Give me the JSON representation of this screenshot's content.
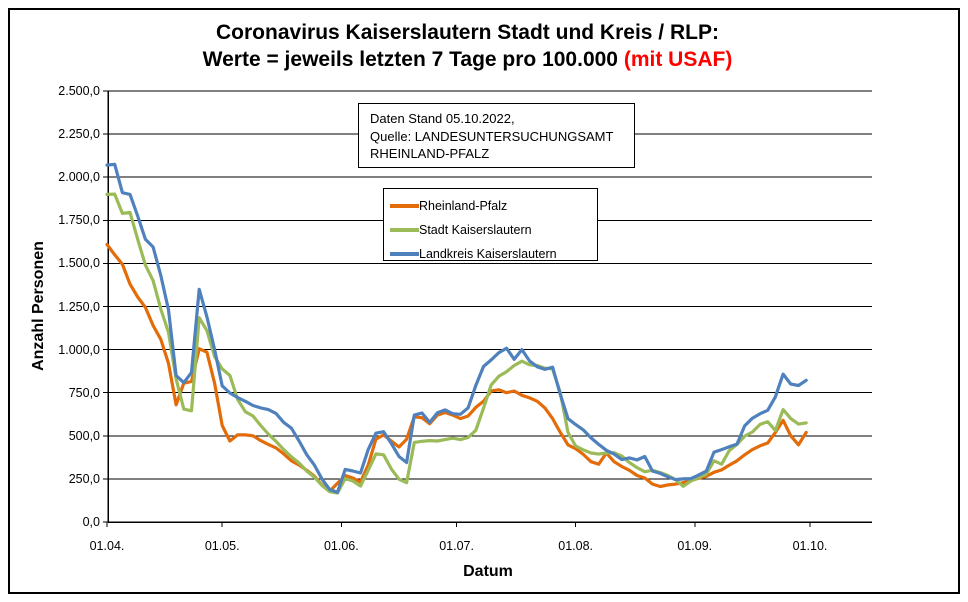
{
  "info_box": {
    "lines": [
      "Daten Stand 05.10.2022,",
      "Quelle: LANDESUNTERSUCHUNGSAMT",
      "RHEINLAND-PFALZ"
    ]
  },
  "chart_data": {
    "type": "line",
    "title": {
      "line1": "Coronavirus Kaiserslautern Stadt und Kreis / RLP:",
      "line2": "Werte = jeweils letzten 7 Tage pro 100.000 ",
      "line2_highlight": "(mit USAF)",
      "highlight_color": "#FF0000"
    },
    "xlabel": "Datum",
    "ylabel": "Anzahl Personen",
    "ylim": [
      0,
      2500
    ],
    "grid": "horizontal-black",
    "legend_position": "inside-upper-center",
    "y_ticks": [
      {
        "value": 2500,
        "label": "2.500,0"
      },
      {
        "value": 2250,
        "label": "2.250,0"
      },
      {
        "value": 2000,
        "label": "2.000,0"
      },
      {
        "value": 1750,
        "label": "1.750,0"
      },
      {
        "value": 1500,
        "label": "1.500,0"
      },
      {
        "value": 1250,
        "label": "1.250,0"
      },
      {
        "value": 1000,
        "label": "1.000,0"
      },
      {
        "value": 750,
        "label": "750,0"
      },
      {
        "value": 500,
        "label": "500,0"
      },
      {
        "value": 250,
        "label": "250,0"
      },
      {
        "value": 0,
        "label": "0,0"
      }
    ],
    "x_ticks": [
      {
        "day": 0,
        "label": "01.04."
      },
      {
        "day": 30,
        "label": "01.05."
      },
      {
        "day": 61,
        "label": "01.06."
      },
      {
        "day": 91,
        "label": "01.07."
      },
      {
        "day": 122,
        "label": "01.08."
      },
      {
        "day": 153,
        "label": "01.09."
      },
      {
        "day": 183,
        "label": "01.10."
      }
    ],
    "x_axis_day_range": [
      0,
      199
    ],
    "x_unit": "Tage ab 01.04.2022",
    "days": [
      0,
      2,
      4,
      6,
      8,
      10,
      12,
      14,
      16,
      18,
      20,
      22,
      24,
      26,
      28,
      30,
      32,
      34,
      36,
      38,
      40,
      42,
      44,
      46,
      48,
      50,
      52,
      54,
      56,
      58,
      60,
      62,
      64,
      66,
      68,
      70,
      72,
      74,
      76,
      78,
      80,
      82,
      84,
      86,
      88,
      90,
      92,
      94,
      96,
      98,
      100,
      102,
      104,
      106,
      108,
      110,
      112,
      114,
      116,
      118,
      120,
      122,
      124,
      126,
      128,
      130,
      132,
      134,
      136,
      138,
      140,
      142,
      144,
      146,
      148,
      150,
      152,
      154,
      156,
      158,
      160,
      162,
      164,
      166,
      168,
      170,
      172,
      174,
      176,
      178,
      180,
      182
    ],
    "series": [
      {
        "name": "Rheinland-Pfalz",
        "color": "#E36C09",
        "values": [
          1610,
          1550,
          1495,
          1380,
          1305,
          1245,
          1140,
          1060,
          920,
          680,
          805,
          815,
          1005,
          985,
          805,
          560,
          470,
          505,
          505,
          500,
          472,
          450,
          430,
          395,
          355,
          330,
          300,
          265,
          215,
          180,
          225,
          270,
          255,
          232,
          330,
          480,
          505,
          470,
          435,
          480,
          610,
          605,
          570,
          620,
          635,
          620,
          600,
          615,
          665,
          700,
          760,
          767,
          750,
          760,
          735,
          720,
          700,
          662,
          600,
          520,
          447,
          425,
          392,
          350,
          335,
          400,
          350,
          322,
          300,
          270,
          255,
          220,
          206,
          215,
          220,
          228,
          240,
          254,
          265,
          288,
          302,
          330,
          355,
          390,
          420,
          442,
          458,
          520,
          590,
          500,
          448,
          520
        ]
      },
      {
        "name": "Stadt Kaiserslautern",
        "color": "#9BBB59",
        "values": [
          1900,
          1902,
          1790,
          1795,
          1640,
          1490,
          1400,
          1235,
          1100,
          830,
          655,
          645,
          1185,
          1110,
          960,
          888,
          850,
          712,
          640,
          615,
          560,
          510,
          468,
          420,
          378,
          342,
          295,
          260,
          212,
          176,
          168,
          252,
          238,
          208,
          300,
          395,
          390,
          308,
          248,
          228,
          462,
          468,
          472,
          470,
          478,
          486,
          478,
          490,
          532,
          660,
          795,
          845,
          872,
          908,
          933,
          912,
          908,
          892,
          888,
          750,
          520,
          440,
          418,
          400,
          394,
          400,
          402,
          382,
          345,
          315,
          292,
          300,
          287,
          270,
          246,
          207,
          238,
          258,
          278,
          355,
          335,
          415,
          450,
          498,
          522,
          566,
          582,
          530,
          652,
          600,
          568,
          575
        ]
      },
      {
        "name": "Landkreis Kaiserslautern",
        "color": "#4F81BD",
        "values": [
          2070,
          2075,
          1910,
          1900,
          1775,
          1640,
          1595,
          1430,
          1230,
          850,
          808,
          868,
          1350,
          1190,
          1000,
          790,
          748,
          722,
          700,
          676,
          662,
          652,
          630,
          578,
          544,
          470,
          390,
          330,
          248,
          188,
          172,
          305,
          296,
          284,
          420,
          515,
          524,
          456,
          380,
          345,
          620,
          632,
          578,
          634,
          650,
          628,
          625,
          662,
          792,
          902,
          940,
          982,
          1008,
          944,
          1000,
          934,
          900,
          886,
          898,
          740,
          600,
          565,
          534,
          488,
          450,
          416,
          394,
          362,
          372,
          360,
          380,
          295,
          282,
          262,
          246,
          250,
          252,
          272,
          295,
          405,
          420,
          436,
          452,
          558,
          602,
          628,
          648,
          726,
          858,
          800,
          792,
          822
        ]
      }
    ]
  }
}
